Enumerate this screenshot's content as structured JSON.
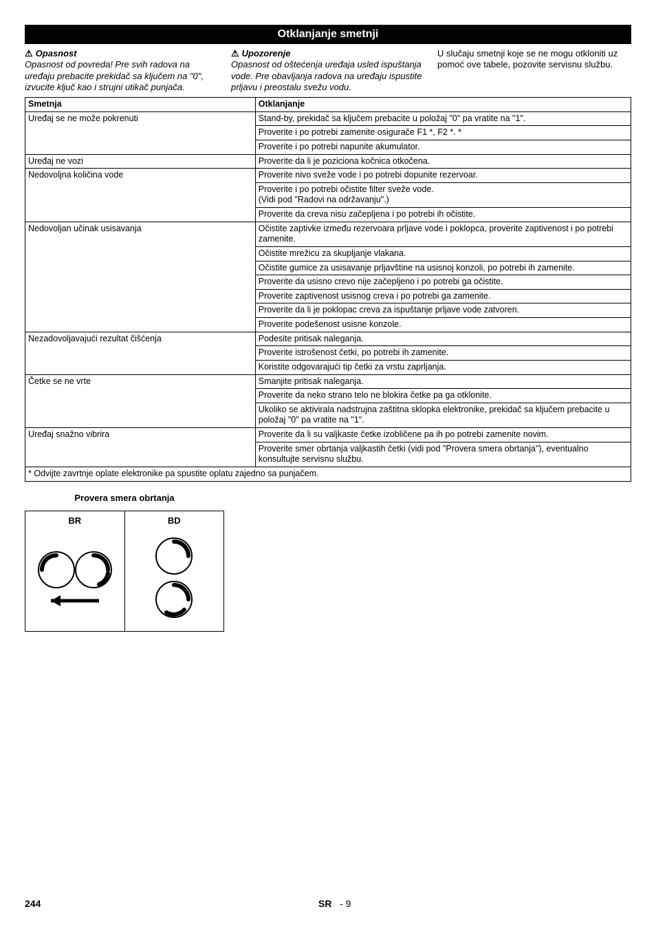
{
  "banner_title": "Otklanjanje smetnji",
  "col1": {
    "warn_label": "Opasnost",
    "warn_text": "Opasnost od povreda! Pre svih radova na uređaju prebacite prekidač sa ključem na \"0\", izvucite ključ kao i strujni utikač punjača."
  },
  "col2": {
    "warn_label": "Upozorenje",
    "warn_text": "Opasnost od oštećenja uređaja usled ispuštanja vode. Pre obavljanja radova na uređaju ispustite prljavu i preostalu svežu vodu."
  },
  "col3": {
    "text": "U slučaju smetnji koje se ne mogu otkloniti uz pomoć ove tabele, pozovite servisnu službu."
  },
  "table": {
    "header_fault": "Smetnja",
    "header_remedy": "Otklanjanje",
    "faults": [
      {
        "fault": "Uređaj se ne može pokrenuti",
        "remedies": [
          "Stand-by, prekidač sa ključem prebacite u položaj \"0\" pa vratite na \"1\".",
          "Proverite i po potrebi zamenite osigurače F1 *, F2 *. *",
          "Proverite i po potrebi napunite akumulator."
        ]
      },
      {
        "fault": "Uređaj ne vozi",
        "remedies": [
          "Proverite da li je poziciona kočnica otkočena."
        ]
      },
      {
        "fault": "Nedovoljna količina vode",
        "remedies": [
          "Proverite nivo sveže vode i po potrebi dopunite rezervoar.",
          "Proverite i po potrebi očistite filter sveže vode.\n(Vidi pod \"Radovi na održavanju\".)",
          "Proverite da creva nisu začepljena i po potrebi ih očistite."
        ]
      },
      {
        "fault": "Nedovoljan učinak usisavanja",
        "remedies": [
          "Očistite zaptivke između rezervoara prljave vode i poklopca, proverite zaptivenost i po potrebi zamenite.",
          "Očistite mrežicu za skupljanje vlakana.",
          "Očistite gumice za usisavanje prljavštine na usisnoj konzoli, po potrebi ih zamenite.",
          "Proverite da usisno crevo nije začepljeno i po potrebi ga očistite.",
          "Proverite zaptivenost usisnog creva i po potrebi ga zamenite.",
          "Proverite da li je poklopac creva za ispuštanje prljave vode zatvoren.",
          "Proverite podešenost usisne konzole."
        ]
      },
      {
        "fault": "Nezadovoljavajući rezultat čišćenja",
        "remedies": [
          "Podesite pritisak naleganja.",
          "Proverite istrošenost četki, po potrebi ih zamenite.",
          "Koristite odgovarajući tip četki za vrstu zaprljanja."
        ]
      },
      {
        "fault": "Četke se ne vrte",
        "remedies": [
          "Smanjite pritisak naleganja.",
          "Proverite da neko strano telo ne blokira četke pa ga otklonite.",
          "Ukoliko se aktivirala nadstrujna zaštitna sklopka elektronike, prekidač sa ključem prebacite u položaj \"0\" pa vratite na \"1\"."
        ]
      },
      {
        "fault": "Uređaj snažno vibrira",
        "remedies": [
          "Proverite da li su valjkaste četke izobličene pa ih po potrebi zamenite novim.",
          "Proverite smer obrtanja valjkastih četki (vidi pod \"Provera smera obrtanja\"), eventualno konsultujte servisnu službu."
        ]
      }
    ],
    "footnote": "* Odvijte zavrtnje oplate elektronike pa spustite oplatu zajedno sa punjačem."
  },
  "subheading": "Provera smera obrtanja",
  "diagram": {
    "left_label": "BR",
    "right_label": "BD"
  },
  "footer": {
    "page": "244",
    "lang": "SR",
    "section": "- 9"
  }
}
